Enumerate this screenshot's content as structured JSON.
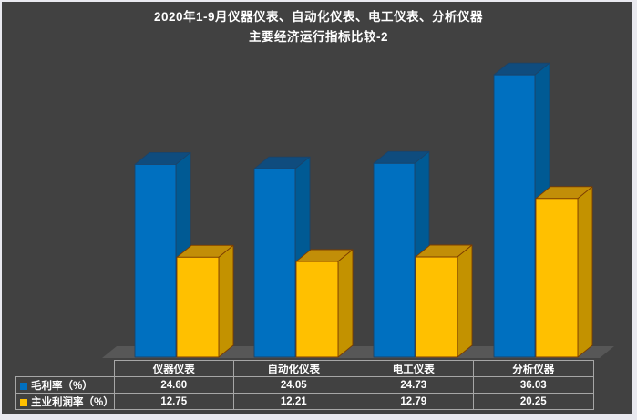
{
  "frame": {
    "page_bg": "#E9E9EF",
    "panel_bg": "#414141",
    "floor_color": "#575757",
    "table_border_color": "#A6A6A6",
    "text_color": "#FFFFFF"
  },
  "title": {
    "line1": "2020年1-9月仪器仪表、自动化仪表、电工仪表、分析仪器",
    "line2": "主要经济运行指标比较-2"
  },
  "chart_data": {
    "type": "bar",
    "projection": "3d",
    "title": "2020年1-9月仪器仪表、自动化仪表、电工仪表、分析仪器 主要经济运行指标比较-2",
    "categories": [
      "仪器仪表",
      "自动化仪表",
      "电工仪表",
      "分析仪器"
    ],
    "series": [
      {
        "name": "毛利率（%）",
        "values": [
          24.6,
          24.05,
          24.73,
          36.03
        ],
        "colors": {
          "front": "#0070C0",
          "top": "#0F4C7E",
          "side": "#005A94",
          "stroke": "#1B4369"
        }
      },
      {
        "name": "主业利润率（%）",
        "values": [
          12.75,
          12.21,
          12.79,
          20.25
        ],
        "colors": {
          "front": "#FFC000",
          "top": "#C28E08",
          "side": "#C39200",
          "stroke": "#7C3D00"
        }
      }
    ],
    "ylabel": "",
    "xlabel": "",
    "axis_shown": false,
    "grid": false,
    "legend_position": "data-table-left",
    "data_table_shown": true
  },
  "table": {
    "columns": [
      "仪器仪表",
      "自动化仪表",
      "电工仪表",
      "分析仪器"
    ],
    "rows": [
      [
        "24.60",
        "24.05",
        "24.73",
        "36.03"
      ],
      [
        "12.75",
        "12.21",
        "12.79",
        "20.25"
      ]
    ]
  }
}
